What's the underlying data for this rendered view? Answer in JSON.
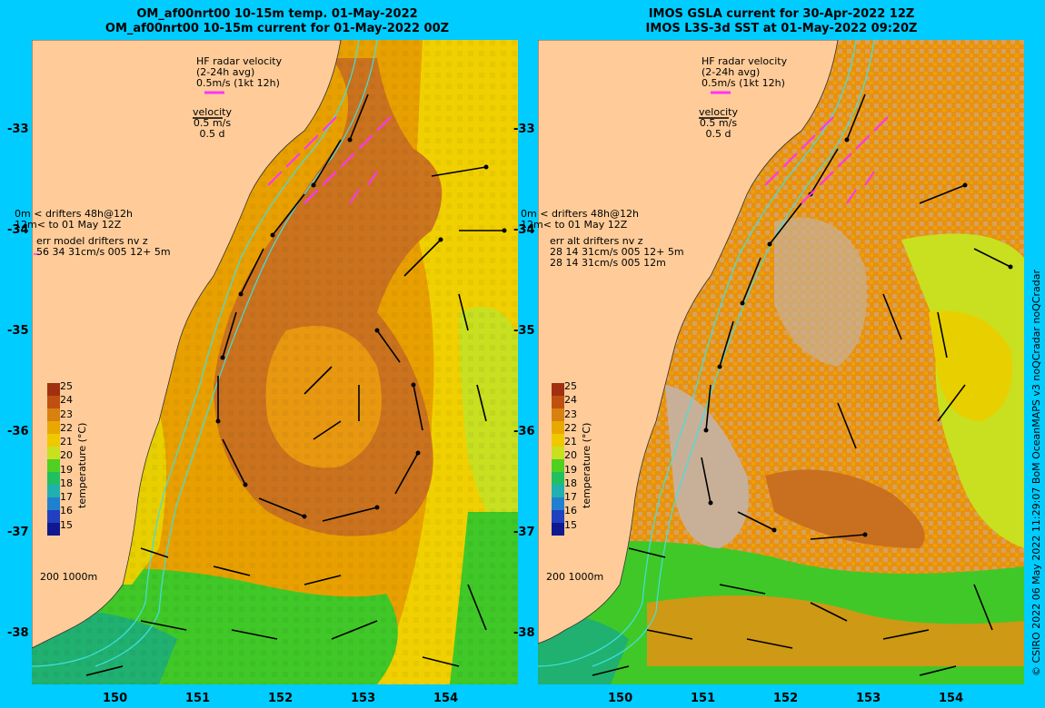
{
  "left": {
    "title_line1": "OM_af00nrt00 10-15m temp. 01-May-2022",
    "title_line2": "OM_af00nrt00 10-15m current for 01-May-2022 00Z",
    "hf_radar": "HF radar velocity",
    "hf_avg": "(2-24h avg)",
    "hf_speed": "0.5m/s (1kt 12h)",
    "velocity": "velocity",
    "vel_ms": "0.5 m/s",
    "vel_d": "0.5 d",
    "drifters_0m": "0m",
    "drifters_line1": "drifters 48h@12h",
    "drifters_12m": "12m",
    "drifters_line2": "to 01 May 12Z",
    "err_line1": "err model drifters nv z",
    "err_line2": "56 34 31cm/s 005 12+ 5m",
    "err_line3": "",
    "isobaths": "200  1000m"
  },
  "right": {
    "title_line1": "IMOS GSLA current for 30-Apr-2022 12Z",
    "title_line2": "IMOS L3S-3d SST at 01-May-2022 09:20Z",
    "hf_radar": "HF radar velocity",
    "hf_avg": "(2-24h avg)",
    "hf_speed": "0.5m/s (1kt 12h)",
    "velocity": "velocity",
    "vel_ms": "0.5 m/s",
    "vel_d": "0.5 d",
    "drifters_0m": "0m",
    "drifters_line1": "drifters 48h@12h",
    "drifters_12m": "12m",
    "drifters_line2": "to 01 May 12Z",
    "err_line1": "err alt drifters nv z",
    "err_line2": "28 14 31cm/s 005 12+ 5m",
    "err_line3": "28 14 31cm/s 005 12m",
    "isobaths": "200  1000m"
  },
  "lat_labels": [
    "-33",
    "-34",
    "-35",
    "-36",
    "-37",
    "-38"
  ],
  "lon_labels": [
    "150",
    "151",
    "152",
    "153",
    "154"
  ],
  "colorbar": {
    "title": "temperature (°C)",
    "ticks": [
      "25",
      "24",
      "23",
      "22",
      "21",
      "20",
      "19",
      "18",
      "17",
      "16",
      "15"
    ],
    "colors": [
      "#a03010",
      "#c05010",
      "#d88010",
      "#e8a800",
      "#f0c800",
      "#c8e020",
      "#50d020",
      "#20c060",
      "#20b0b0",
      "#2080d0",
      "#2040c0",
      "#101890"
    ]
  },
  "credit": "© CSIRO 2022   06 May 2022 11:29:07 BoM OceanMAPS v3 noQCradar noQCradar",
  "colors": {
    "frame": "#00ccff",
    "land": "#ffcc99",
    "warm_core": "#c87020",
    "orange": "#e89810",
    "yellow": "#e8d000",
    "green": "#40c828",
    "teal": "#20b070",
    "cloud": "#c8b098",
    "hf_arrow": "#ff33ff",
    "isobath": "#40e0e0"
  }
}
